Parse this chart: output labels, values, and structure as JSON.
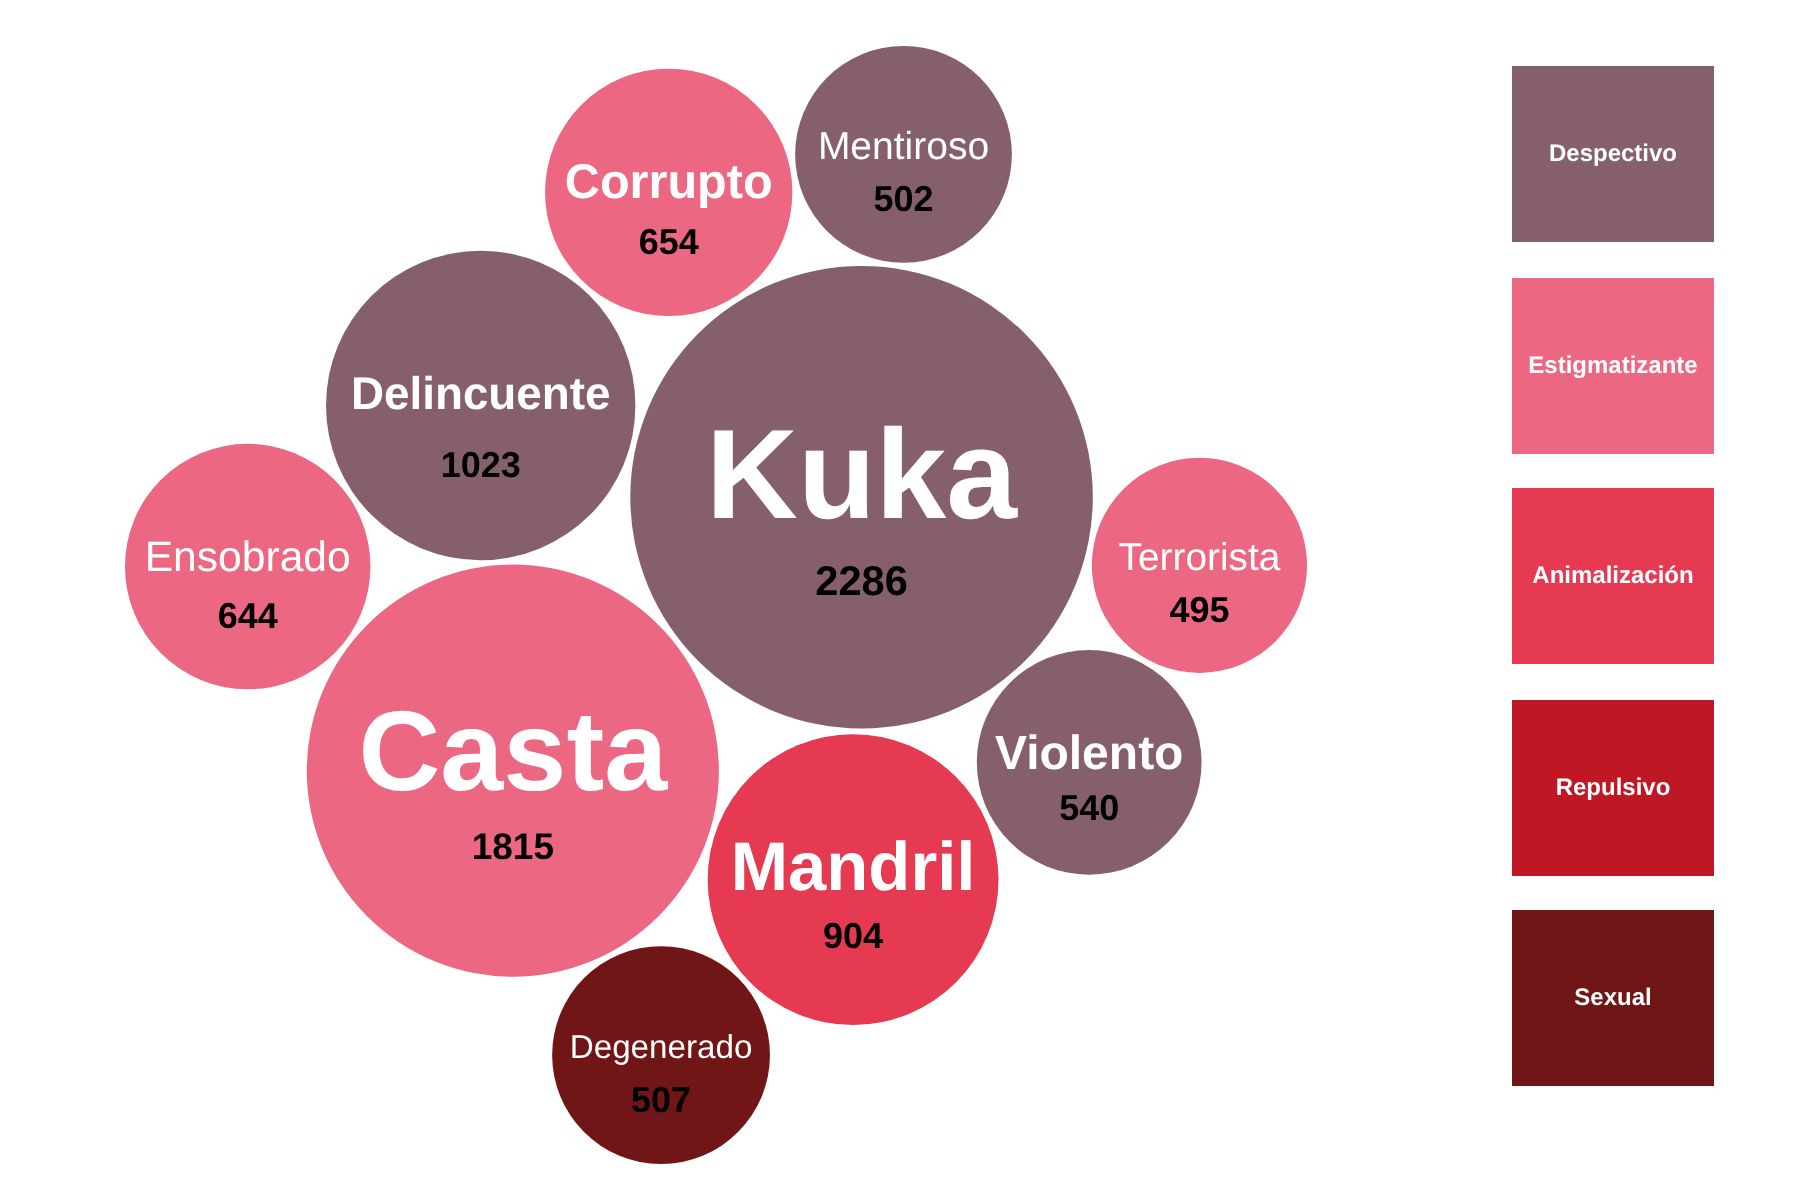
{
  "chart_data": {
    "type": "other",
    "categories": [
      "Kuka",
      "Casta",
      "Delincuente",
      "Mandril",
      "Corrupto",
      "Ensobrado",
      "Violento",
      "Degenerado",
      "Mentiroso",
      "Terrorista"
    ],
    "series": [
      {
        "name": "Despectivo",
        "color": "#85606a",
        "values": [
          2286,
          null,
          1023,
          null,
          null,
          null,
          540,
          null,
          502,
          null
        ]
      },
      {
        "name": "Estigmatizante",
        "color": "#ec6882",
        "values": [
          null,
          1815,
          null,
          null,
          654,
          644,
          null,
          null,
          null,
          495
        ]
      },
      {
        "name": "Animalización",
        "color": "#e53a51",
        "values": [
          null,
          null,
          null,
          904,
          null,
          null,
          null,
          null,
          null,
          null
        ]
      },
      {
        "name": "Repulsivo",
        "color": "#bf1724",
        "values": [
          null,
          null,
          null,
          null,
          null,
          null,
          null,
          null,
          null,
          null
        ]
      },
      {
        "name": "Sexual",
        "color": "#711616",
        "values": [
          null,
          null,
          null,
          null,
          null,
          null,
          null,
          507,
          null,
          null
        ]
      }
    ],
    "data_labels": true,
    "legend": "right"
  }
}
